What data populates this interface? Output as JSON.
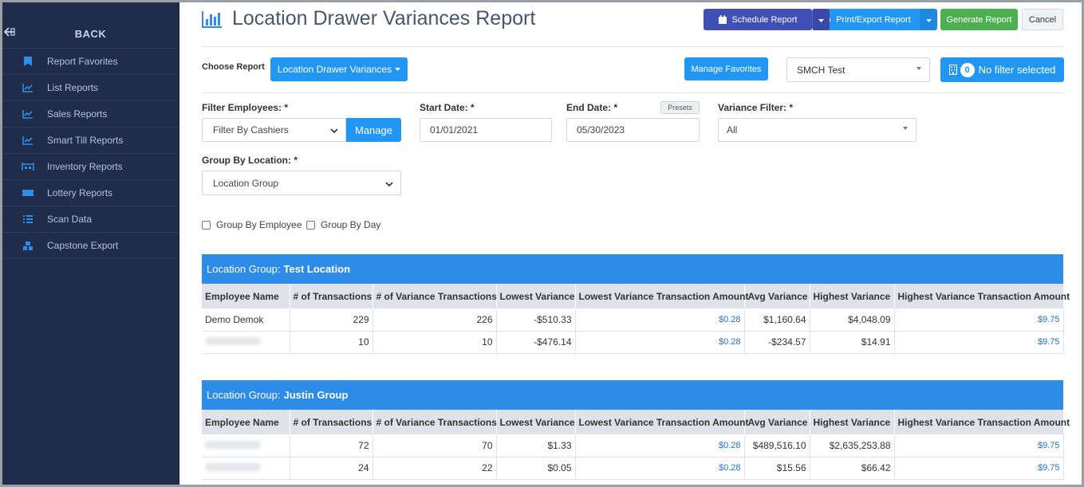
{
  "sidebar": {
    "back_label": "BACK",
    "items": [
      {
        "label": "Report Favorites",
        "icon": "bookmark-icon"
      },
      {
        "label": "List Reports",
        "icon": "chart-line-icon"
      },
      {
        "label": "Sales Reports",
        "icon": "chart-line-icon"
      },
      {
        "label": "Smart Till Reports",
        "icon": "chart-line-icon"
      },
      {
        "label": "Inventory Reports",
        "icon": "warehouse-icon"
      },
      {
        "label": "Lottery Reports",
        "icon": "ticket-icon"
      },
      {
        "label": "Scan Data",
        "icon": "list-icon"
      },
      {
        "label": "Capstone Export",
        "icon": "cubes-icon"
      }
    ]
  },
  "header": {
    "title": "Location Drawer Variances Report",
    "schedule_label": "Schedule Report",
    "print_label": "Print/Export Report",
    "generate_label": "Generate Report",
    "cancel_label": "Cancel"
  },
  "controls": {
    "choose_label": "Choose Report",
    "report_value": "Location Drawer Variances",
    "favorites_label": "Manage Favorites",
    "store_value": "SMCH Test",
    "filter_count": "0",
    "filter_label": "No filter selected"
  },
  "filters": {
    "employees_label": "Filter Employees: *",
    "employees_value": "Filter By Cashiers",
    "manage_label": "Manage",
    "start_label": "Start Date: *",
    "start_value": "01/01/2021",
    "end_label": "End Date: *",
    "end_value": "05/30/2023",
    "presets_label": "Presets",
    "variance_label": "Variance Filter: *",
    "variance_value": "All",
    "group_label": "Group By Location: *",
    "group_value": "Location Group",
    "group_by_employee": "Group By Employee",
    "group_by_day": "Group By Day"
  },
  "columns": [
    "Employee Name",
    "# of Transactions",
    "# of Variance Transactions",
    "Lowest Variance",
    "Lowest Variance Transaction Amount",
    "Avg Variance",
    "Highest Variance",
    "Highest Variance Transaction Amount"
  ],
  "groups": [
    {
      "prefix": "Location Group:",
      "name": "Test Location",
      "rows": [
        {
          "employee": "Demo Demok",
          "transactions": "229",
          "variance_transactions": "226",
          "lowest": "-$510.33",
          "lowest_amt": "$0.28",
          "avg": "$1,160.64",
          "highest": "$4,048.09",
          "highest_amt": "$9.75"
        },
        {
          "employee": "",
          "transactions": "10",
          "variance_transactions": "10",
          "lowest": "-$476.14",
          "lowest_amt": "$0.28",
          "avg": "-$234.57",
          "highest": "$14.91",
          "highest_amt": "$9.75"
        }
      ]
    },
    {
      "prefix": "Location Group:",
      "name": "Justin Group",
      "rows": [
        {
          "employee": "",
          "transactions": "72",
          "variance_transactions": "70",
          "lowest": "$1.33",
          "lowest_amt": "$0.28",
          "avg": "$489,516.10",
          "highest": "$2,635,253.88",
          "highest_amt": "$9.75"
        },
        {
          "employee": "",
          "transactions": "24",
          "variance_transactions": "22",
          "lowest": "$0.05",
          "lowest_amt": "$0.28",
          "avg": "$15.56",
          "highest": "$66.42",
          "highest_amt": "$9.75"
        }
      ]
    }
  ]
}
